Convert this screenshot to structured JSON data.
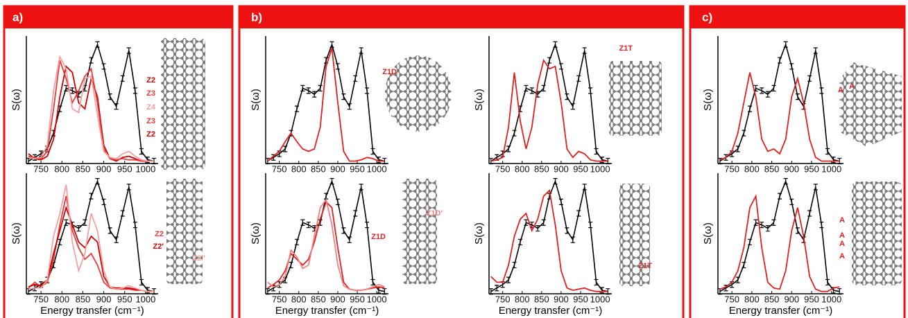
{
  "panels": [
    {
      "label": "a)"
    },
    {
      "label": "b)"
    },
    {
      "label": "c)"
    }
  ],
  "chart_data": [
    {
      "type": "line",
      "ylabel": "S(ω)",
      "xlim": [
        715,
        1030
      ],
      "ylim": [
        0,
        1.05
      ],
      "xticks": [
        750,
        800,
        850,
        900,
        950,
        1000
      ],
      "x": [
        720,
        735,
        750,
        765,
        780,
        795,
        810,
        825,
        840,
        855,
        870,
        885,
        900,
        915,
        930,
        945,
        960,
        975,
        990,
        1005,
        1020
      ],
      "series": [
        {
          "color": "#000000",
          "markers": true,
          "values": [
            0.02,
            0.05,
            0.08,
            0.12,
            0.25,
            0.45,
            0.62,
            0.6,
            0.57,
            0.62,
            0.85,
            0.98,
            0.8,
            0.55,
            0.47,
            0.7,
            0.93,
            0.6,
            0.1,
            0.03,
            0.02
          ]
        },
        {
          "color": "#cc0000",
          "values": [
            0.08,
            0.04,
            0.03,
            0.06,
            0.2,
            0.55,
            0.8,
            0.75,
            0.5,
            0.45,
            0.7,
            0.55,
            0.15,
            0.04,
            0.02,
            0.05,
            0.06,
            0.04,
            0.02,
            0.02,
            0.02
          ]
        },
        {
          "color": "#e83a3a",
          "values": [
            0.06,
            0.05,
            0.04,
            0.1,
            0.45,
            0.85,
            0.7,
            0.5,
            0.6,
            0.72,
            0.78,
            0.5,
            0.12,
            0.04,
            0.03,
            0.04,
            0.03,
            0.03,
            0.02,
            0.02,
            0.02
          ]
        },
        {
          "color": "#f4a0a0",
          "values": [
            0.05,
            0.04,
            0.05,
            0.15,
            0.6,
            0.88,
            0.78,
            0.45,
            0.42,
            0.7,
            0.72,
            0.4,
            0.1,
            0.05,
            0.04,
            0.08,
            0.1,
            0.06,
            0.03,
            0.02,
            0.02
          ]
        }
      ],
      "annotations": [
        {
          "text": "Z2",
          "color": "#cc0000"
        },
        {
          "text": "Z3",
          "color": "#e83a3a"
        },
        {
          "text": "Z4",
          "color": "#f4a0a0"
        },
        {
          "text": "Z3",
          "color": "#e83a3a"
        },
        {
          "text": "Z2",
          "color": "#cc0000"
        }
      ]
    },
    {
      "type": "line",
      "ylabel": "S(ω)",
      "xlabel": "Energy transfer (cm⁻¹)",
      "xlim": [
        715,
        1030
      ],
      "ylim": [
        0,
        1.05
      ],
      "xticks": [
        750,
        800,
        850,
        900,
        950,
        1000
      ],
      "x": [
        720,
        735,
        750,
        765,
        780,
        795,
        810,
        825,
        840,
        855,
        870,
        885,
        900,
        915,
        930,
        945,
        960,
        975,
        990,
        1005,
        1020
      ],
      "series": [
        {
          "color": "#000000",
          "markers": true,
          "values": [
            0.02,
            0.05,
            0.08,
            0.12,
            0.25,
            0.45,
            0.62,
            0.6,
            0.57,
            0.62,
            0.85,
            0.98,
            0.8,
            0.55,
            0.47,
            0.7,
            0.93,
            0.6,
            0.1,
            0.03,
            0.02
          ]
        },
        {
          "color": "#e83a3a",
          "values": [
            0.05,
            0.1,
            0.06,
            0.1,
            0.3,
            0.6,
            0.85,
            0.55,
            0.4,
            0.3,
            0.35,
            0.25,
            0.1,
            0.05,
            0.04,
            0.04,
            0.04,
            0.03,
            0.03,
            0.02,
            0.02
          ]
        },
        {
          "color": "#cc0000",
          "values": [
            0.06,
            0.08,
            0.07,
            0.12,
            0.35,
            0.55,
            0.75,
            0.6,
            0.45,
            0.4,
            0.5,
            0.45,
            0.15,
            0.06,
            0.05,
            0.05,
            0.05,
            0.04,
            0.03,
            0.02,
            0.02
          ]
        },
        {
          "color": "#f4a0a0",
          "values": [
            0.04,
            0.05,
            0.05,
            0.12,
            0.5,
            0.7,
            0.95,
            0.45,
            0.2,
            0.35,
            0.7,
            0.55,
            0.2,
            0.06,
            0.04,
            0.05,
            0.07,
            0.05,
            0.03,
            0.02,
            0.02
          ]
        }
      ],
      "annotations": [
        {
          "text": "Z2",
          "color": "#e83a3a"
        },
        {
          "text": "Z2'",
          "color": "#cc0000"
        },
        {
          "text": "Z2''",
          "color": "#f4a0a0"
        }
      ]
    },
    {
      "type": "line",
      "ylabel": "S(ω)",
      "xlim": [
        715,
        1030
      ],
      "ylim": [
        0,
        1.05
      ],
      "xticks": [
        750,
        800,
        850,
        900,
        950,
        1000
      ],
      "x": [
        720,
        735,
        750,
        765,
        780,
        795,
        810,
        825,
        840,
        855,
        870,
        885,
        900,
        915,
        930,
        945,
        960,
        975,
        990,
        1005,
        1020
      ],
      "series": [
        {
          "color": "#000000",
          "markers": true,
          "values": [
            0.02,
            0.05,
            0.08,
            0.12,
            0.25,
            0.45,
            0.62,
            0.6,
            0.57,
            0.62,
            0.85,
            0.98,
            0.8,
            0.55,
            0.47,
            0.7,
            0.93,
            0.6,
            0.1,
            0.03,
            0.02
          ]
        },
        {
          "color": "#e02020",
          "values": [
            0.02,
            0.06,
            0.1,
            0.18,
            0.25,
            0.18,
            0.12,
            0.1,
            0.12,
            0.3,
            0.8,
            0.95,
            0.5,
            0.1,
            0.02,
            0.02,
            0.03,
            0.05,
            0.04,
            0.02,
            0.02
          ]
        }
      ],
      "annotations": [
        {
          "text": "Z1D",
          "color": "#e02020"
        }
      ]
    },
    {
      "type": "line",
      "ylabel": "S(ω)",
      "xlim": [
        715,
        1030
      ],
      "ylim": [
        0,
        1.05
      ],
      "xticks": [
        750,
        800,
        850,
        900,
        950,
        1000
      ],
      "x": [
        720,
        735,
        750,
        765,
        780,
        795,
        810,
        825,
        840,
        855,
        870,
        885,
        900,
        915,
        930,
        945,
        960,
        975,
        990,
        1005,
        1020
      ],
      "series": [
        {
          "color": "#000000",
          "markers": true,
          "values": [
            0.02,
            0.05,
            0.08,
            0.12,
            0.25,
            0.45,
            0.62,
            0.6,
            0.57,
            0.62,
            0.85,
            0.98,
            0.8,
            0.55,
            0.47,
            0.7,
            0.93,
            0.6,
            0.1,
            0.03,
            0.02
          ]
        },
        {
          "color": "#e02020",
          "values": [
            0.02,
            0.03,
            0.05,
            0.3,
            0.75,
            0.35,
            0.12,
            0.3,
            0.65,
            0.85,
            0.78,
            0.8,
            0.5,
            0.12,
            0.05,
            0.1,
            0.08,
            0.03,
            0.02,
            0.02,
            0.02
          ]
        }
      ],
      "annotations": [
        {
          "text": "Z1T",
          "color": "#e02020"
        }
      ]
    },
    {
      "type": "line",
      "ylabel": "S(ω)",
      "xlabel": "Energy transfer (cm⁻¹)",
      "xlim": [
        715,
        1030
      ],
      "ylim": [
        0,
        1.05
      ],
      "xticks": [
        750,
        800,
        850,
        900,
        950,
        1000
      ],
      "x": [
        720,
        735,
        750,
        765,
        780,
        795,
        810,
        825,
        840,
        855,
        870,
        885,
        900,
        915,
        930,
        945,
        960,
        975,
        990,
        1005,
        1020
      ],
      "series": [
        {
          "color": "#000000",
          "markers": true,
          "values": [
            0.02,
            0.05,
            0.08,
            0.12,
            0.25,
            0.45,
            0.62,
            0.6,
            0.57,
            0.62,
            0.85,
            0.98,
            0.8,
            0.55,
            0.47,
            0.7,
            0.93,
            0.6,
            0.1,
            0.03,
            0.02
          ]
        },
        {
          "color": "#e02020",
          "values": [
            0.05,
            0.08,
            0.12,
            0.2,
            0.35,
            0.3,
            0.25,
            0.3,
            0.45,
            0.65,
            0.8,
            0.75,
            0.4,
            0.1,
            0.04,
            0.03,
            0.03,
            0.04,
            0.05,
            0.06,
            0.05
          ]
        },
        {
          "color": "#f08080",
          "values": [
            0.1,
            0.06,
            0.08,
            0.15,
            0.38,
            0.32,
            0.22,
            0.25,
            0.5,
            0.75,
            0.82,
            0.6,
            0.25,
            0.07,
            0.04,
            0.03,
            0.03,
            0.04,
            0.06,
            0.08,
            0.06
          ]
        }
      ],
      "annotations": [
        {
          "text": "Z1D'",
          "color": "#f08080"
        },
        {
          "text": "Z1D",
          "color": "#e02020"
        }
      ]
    },
    {
      "type": "line",
      "ylabel": "S(ω)",
      "xlabel": "Energy transfer (cm⁻¹)",
      "xlim": [
        715,
        1030
      ],
      "ylim": [
        0,
        1.05
      ],
      "xticks": [
        750,
        800,
        850,
        900,
        950,
        1000
      ],
      "x": [
        720,
        735,
        750,
        765,
        780,
        795,
        810,
        825,
        840,
        855,
        870,
        885,
        900,
        915,
        930,
        945,
        960,
        975,
        990,
        1005,
        1020
      ],
      "series": [
        {
          "color": "#000000",
          "markers": true,
          "values": [
            0.02,
            0.05,
            0.08,
            0.12,
            0.25,
            0.45,
            0.62,
            0.6,
            0.57,
            0.62,
            0.85,
            0.98,
            0.8,
            0.55,
            0.47,
            0.7,
            0.93,
            0.6,
            0.1,
            0.03,
            0.02
          ]
        },
        {
          "color": "#e02020",
          "values": [
            0.15,
            0.1,
            0.1,
            0.25,
            0.5,
            0.65,
            0.7,
            0.55,
            0.65,
            0.85,
            0.9,
            0.6,
            0.2,
            0.05,
            0.03,
            0.04,
            0.05,
            0.03,
            0.02,
            0.02,
            0.02
          ]
        }
      ],
      "annotations": [
        {
          "text": "Z1T",
          "color": "#e02020"
        }
      ]
    },
    {
      "type": "line",
      "ylabel": "S(ω)",
      "xlim": [
        715,
        1030
      ],
      "ylim": [
        0,
        1.05
      ],
      "xticks": [
        750,
        800,
        850,
        900,
        950,
        1000
      ],
      "x": [
        720,
        735,
        750,
        765,
        780,
        795,
        810,
        825,
        840,
        855,
        870,
        885,
        900,
        915,
        930,
        945,
        960,
        975,
        990,
        1005,
        1020
      ],
      "series": [
        {
          "color": "#000000",
          "markers": true,
          "values": [
            0.02,
            0.05,
            0.08,
            0.12,
            0.25,
            0.45,
            0.62,
            0.6,
            0.57,
            0.62,
            0.85,
            0.98,
            0.8,
            0.55,
            0.47,
            0.7,
            0.93,
            0.6,
            0.1,
            0.03,
            0.02
          ]
        },
        {
          "color": "#e02020",
          "values": [
            0.03,
            0.05,
            0.1,
            0.25,
            0.5,
            0.75,
            0.55,
            0.2,
            0.1,
            0.12,
            0.08,
            0.2,
            0.55,
            0.7,
            0.5,
            0.2,
            0.05,
            0.02,
            0.02,
            0.02,
            0.02
          ]
        }
      ],
      "annotations": [
        {
          "text": "A",
          "color": "#e02020"
        },
        {
          "text": "A",
          "color": "#e02020"
        }
      ]
    },
    {
      "type": "line",
      "ylabel": "S(ω)",
      "xlabel": "Energy transfer (cm⁻¹)",
      "xlim": [
        715,
        1030
      ],
      "ylim": [
        0,
        1.05
      ],
      "xticks": [
        750,
        800,
        850,
        900,
        950,
        1000
      ],
      "x": [
        720,
        735,
        750,
        765,
        780,
        795,
        810,
        825,
        840,
        855,
        870,
        885,
        900,
        915,
        930,
        945,
        960,
        975,
        990,
        1005,
        1020
      ],
      "series": [
        {
          "color": "#000000",
          "markers": true,
          "values": [
            0.02,
            0.05,
            0.08,
            0.12,
            0.25,
            0.45,
            0.62,
            0.6,
            0.57,
            0.62,
            0.85,
            0.98,
            0.8,
            0.55,
            0.47,
            0.7,
            0.93,
            0.6,
            0.1,
            0.03,
            0.02
          ]
        },
        {
          "color": "#e02020",
          "values": [
            0.04,
            0.06,
            0.1,
            0.2,
            0.4,
            0.75,
            0.85,
            0.4,
            0.1,
            0.05,
            0.04,
            0.2,
            0.55,
            0.75,
            0.5,
            0.15,
            0.04,
            0.02,
            0.02,
            0.05,
            0.06
          ]
        }
      ],
      "annotations": [
        {
          "text": "A",
          "color": "#e02020"
        },
        {
          "text": "A",
          "color": "#e02020"
        },
        {
          "text": "A",
          "color": "#e02020"
        },
        {
          "text": "A",
          "color": "#e02020"
        }
      ]
    }
  ]
}
